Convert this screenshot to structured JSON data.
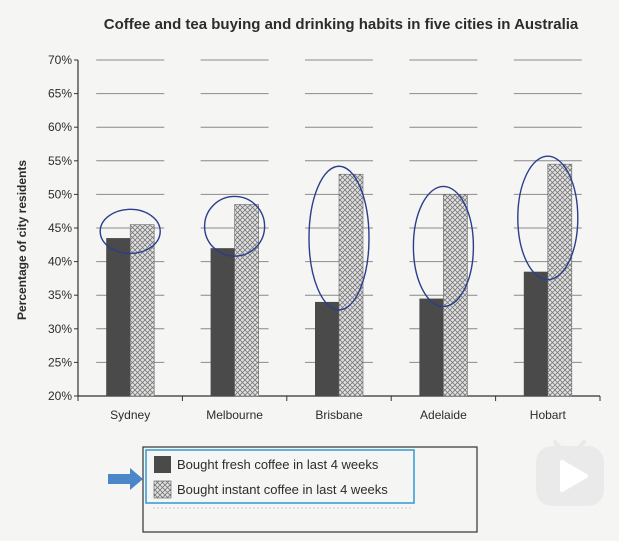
{
  "chart_data": {
    "type": "bar",
    "title": "Coffee and tea buying and drinking habits in five cities in Australia",
    "ylabel": "Percentage of city residents",
    "xlabel": "",
    "categories": [
      "Sydney",
      "Melbourne",
      "Brisbane",
      "Adelaide",
      "Hobart"
    ],
    "series": [
      {
        "name": "Bought fresh coffee in last 4 weeks",
        "values": [
          43.5,
          42,
          34,
          34.5,
          38.5
        ]
      },
      {
        "name": "Bought instant coffee in last 4 weeks",
        "values": [
          45.5,
          48.5,
          53,
          50,
          54.5
        ]
      }
    ],
    "ylim": [
      20,
      70
    ],
    "yticks": [
      "20%",
      "25%",
      "30%",
      "35%",
      "40%",
      "45%",
      "50%",
      "55%",
      "60%",
      "65%",
      "70%"
    ],
    "grid": true,
    "legend_position": "bottom",
    "colors": {
      "fresh": "#4a4a4a",
      "instant": "#d8d8d8",
      "circle": "#2a3e8c",
      "legend_highlight": "#3aa0d8",
      "arrow": "#4a86c8"
    }
  }
}
